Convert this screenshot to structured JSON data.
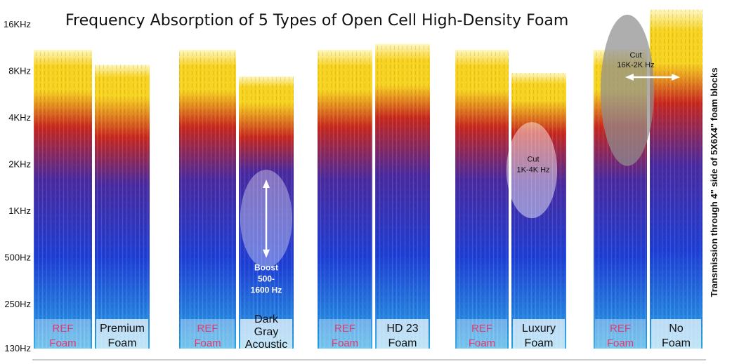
{
  "chart_data": {
    "type": "heatmap",
    "title": "Frequency Absorption of 5 Types of Open Cell High-Density Foam",
    "side_label": "Transmission through 4\" side of 5X6X4\" foam blocks",
    "y_ticks": [
      {
        "label": "16KHz",
        "hz": 16000
      },
      {
        "label": "8KHz",
        "hz": 8000
      },
      {
        "label": "4KHz",
        "hz": 4000
      },
      {
        "label": "2KHz",
        "hz": 2000
      },
      {
        "label": "1KHz",
        "hz": 1000
      },
      {
        "label": "500Hz",
        "hz": 500
      },
      {
        "label": "250Hz",
        "hz": 250
      },
      {
        "label": "130Hz",
        "hz": 130
      }
    ],
    "y_scale": "log",
    "ylim_hz": [
      130,
      16000
    ],
    "pairs": [
      {
        "ref": {
          "lines": [
            "REF",
            "Foam"
          ],
          "top_hz": 11000,
          "yellow_hz": 6000,
          "red_hz": 3500,
          "purple_hz": 1600,
          "blue_hz": 500
        },
        "test": {
          "lines": [
            "Premium",
            "Foam"
          ],
          "top_hz": 8800,
          "yellow_hz": 5500,
          "red_hz": 3000,
          "purple_hz": 1500,
          "blue_hz": 500
        }
      },
      {
        "ref": {
          "lines": [
            "REF",
            "Foam"
          ],
          "top_hz": 11000,
          "yellow_hz": 6000,
          "red_hz": 3500,
          "purple_hz": 1600,
          "blue_hz": 500
        },
        "test": {
          "lines": [
            "Dark",
            "Gray",
            "Acoustic"
          ],
          "top_hz": 7400,
          "yellow_hz": 5000,
          "red_hz": 3000,
          "purple_hz": 1800,
          "blue_hz": 450
        }
      },
      {
        "ref": {
          "lines": [
            "REF",
            "Foam"
          ],
          "top_hz": 11000,
          "yellow_hz": 6000,
          "red_hz": 3500,
          "purple_hz": 1600,
          "blue_hz": 500
        },
        "test": {
          "lines": [
            "HD 23",
            "Foam"
          ],
          "top_hz": 12000,
          "yellow_hz": 6500,
          "red_hz": 4000,
          "purple_hz": 1700,
          "blue_hz": 520
        }
      },
      {
        "ref": {
          "lines": [
            "REF",
            "Foam"
          ],
          "top_hz": 11000,
          "yellow_hz": 6000,
          "red_hz": 3500,
          "purple_hz": 1600,
          "blue_hz": 500
        },
        "test": {
          "lines": [
            "Luxury",
            "Foam"
          ],
          "top_hz": 7800,
          "yellow_hz": 5200,
          "red_hz": 3200,
          "purple_hz": 1500,
          "blue_hz": 500
        }
      },
      {
        "ref": {
          "lines": [
            "REF",
            "Foam"
          ],
          "top_hz": 11000,
          "yellow_hz": 6000,
          "red_hz": 3500,
          "purple_hz": 1600,
          "blue_hz": 500
        },
        "test": {
          "lines": [
            "No",
            "Foam"
          ],
          "top_hz": 20000,
          "yellow_hz": 9000,
          "red_hz": 5000,
          "purple_hz": 2000,
          "blue_hz": 550
        }
      }
    ],
    "annotations": [
      {
        "lines": [
          "Boost",
          "500-",
          "1600 Hz"
        ],
        "pair": 1,
        "from_hz": 500,
        "to_hz": 1600,
        "kind": "boost"
      },
      {
        "lines": [
          "Cut",
          "1K-4K Hz"
        ],
        "pair": 3,
        "from_hz": 1000,
        "to_hz": 4000,
        "kind": "cut"
      },
      {
        "lines": [
          "Cut",
          "16K-2K Hz"
        ],
        "pair": 4,
        "from_hz": 2000,
        "to_hz": 16000,
        "kind": "cut-wide"
      }
    ],
    "colors": {
      "top": "#fff7c0",
      "yellow": "#f7d21e",
      "red": "#c8281e",
      "purple": "#4a2aa0",
      "blue": "#1e3fd6",
      "cyan": "#2aa8e6"
    }
  }
}
